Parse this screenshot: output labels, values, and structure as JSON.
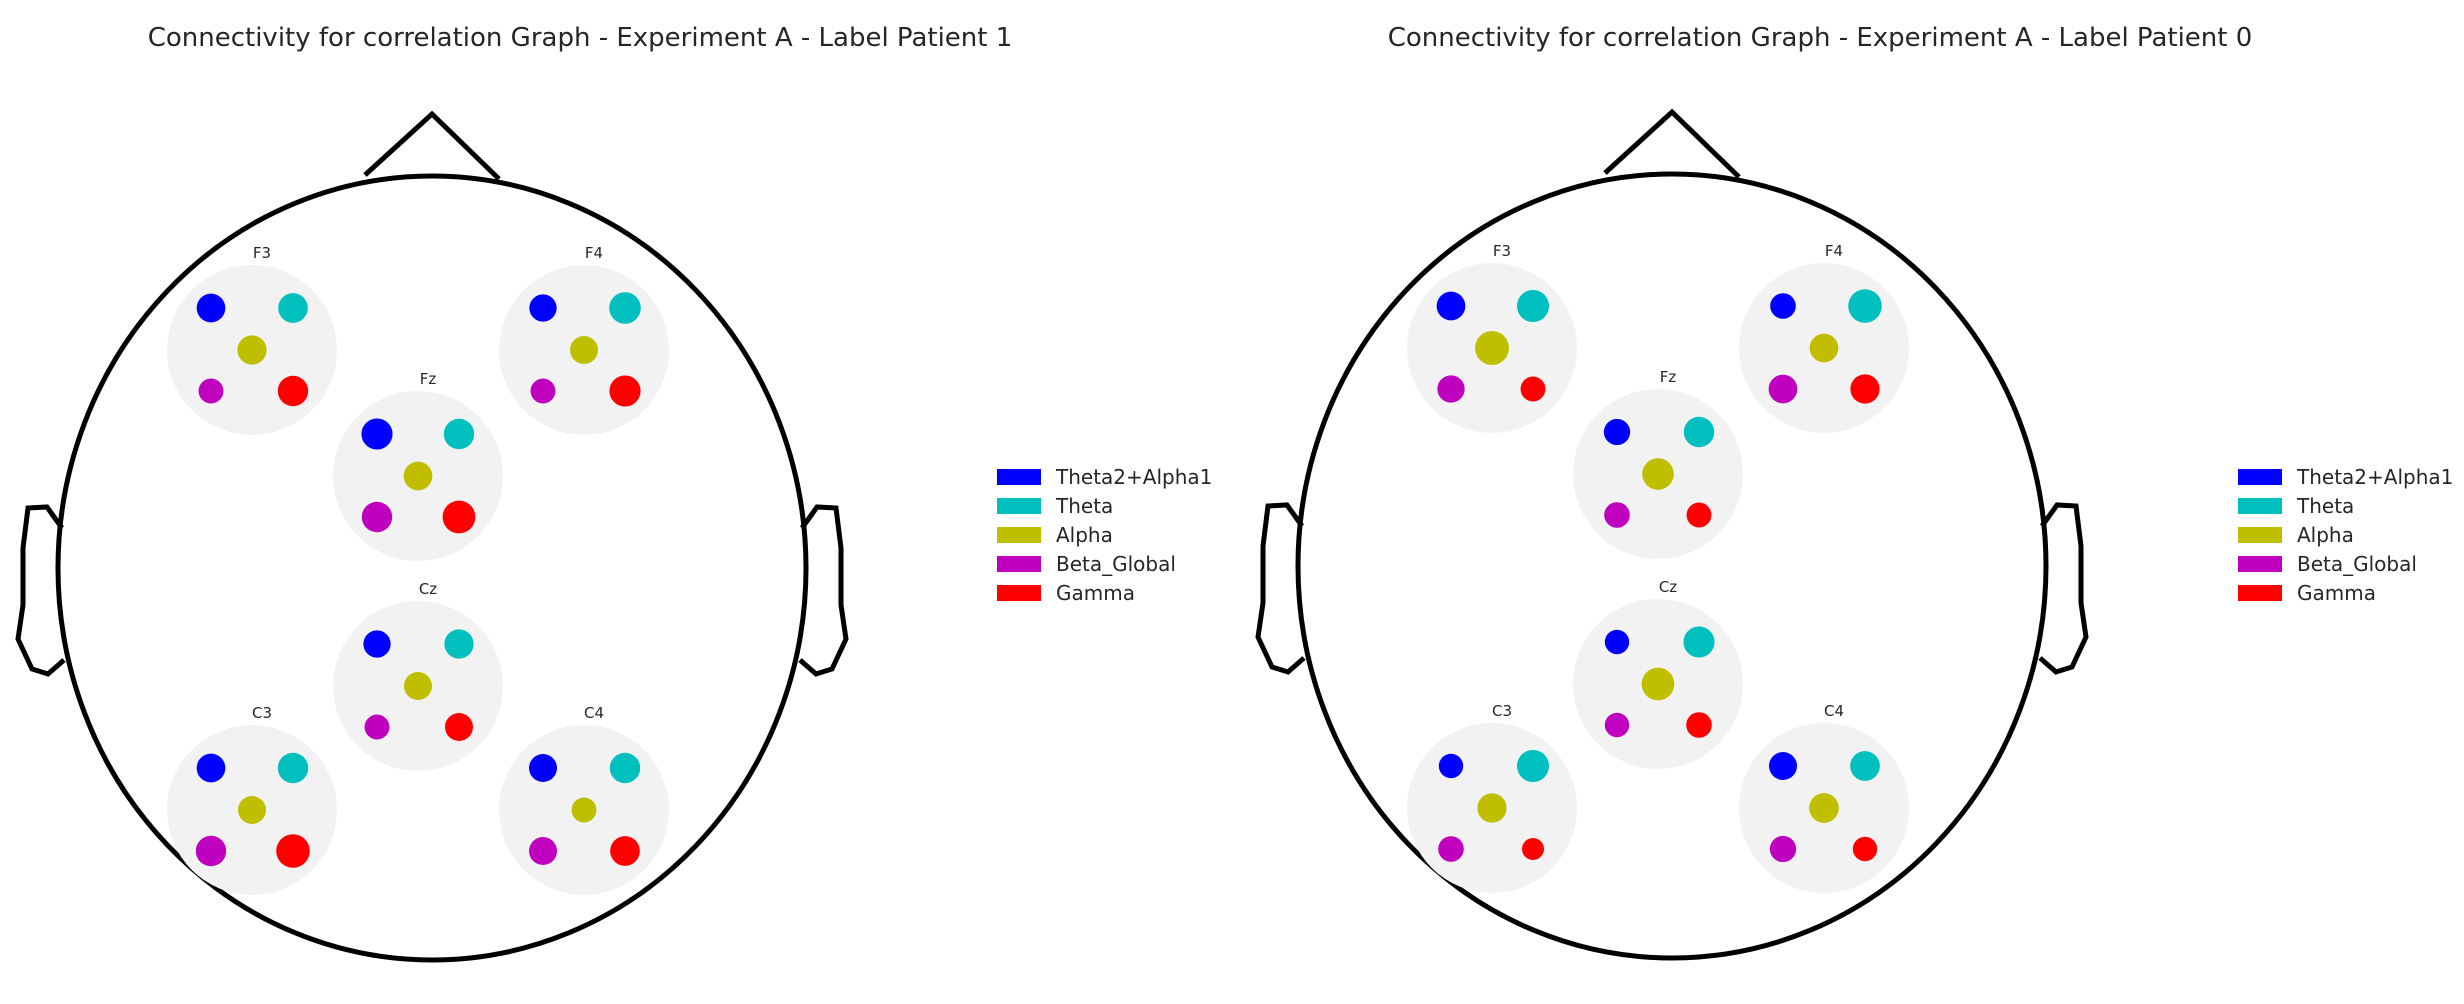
{
  "chart_data": [
    {
      "type": "scatter",
      "title": "Connectivity for correlation Graph - Experiment A - Label Patient 1",
      "series_order": [
        "Theta2+Alpha1",
        "Theta",
        "Alpha",
        "Beta_Global",
        "Gamma"
      ],
      "colors": {
        "Theta2+Alpha1": "#0000ff",
        "Theta": "#00bfbf",
        "Alpha": "#bfbf00",
        "Beta_Global": "#bf00bf",
        "Gamma": "#ff0000"
      },
      "legend": [
        "Theta2+Alpha1",
        "Theta",
        "Alpha",
        "Beta_Global",
        "Gamma"
      ],
      "legend_position": "right",
      "electrodes": [
        {
          "name": "F3",
          "values": {
            "Theta2+Alpha1": 0.78,
            "Theta": 0.82,
            "Alpha": 0.8,
            "Beta_Global": 0.62,
            "Gamma": 0.85
          }
        },
        {
          "name": "F4",
          "values": {
            "Theta2+Alpha1": 0.72,
            "Theta": 0.9,
            "Alpha": 0.75,
            "Beta_Global": 0.62,
            "Gamma": 0.88
          }
        },
        {
          "name": "Fz",
          "values": {
            "Theta2+Alpha1": 0.88,
            "Theta": 0.85,
            "Alpha": 0.78,
            "Beta_Global": 0.85,
            "Gamma": 0.95
          }
        },
        {
          "name": "Cz",
          "values": {
            "Theta2+Alpha1": 0.72,
            "Theta": 0.8,
            "Alpha": 0.75,
            "Beta_Global": 0.62,
            "Gamma": 0.75
          }
        },
        {
          "name": "C3",
          "values": {
            "Theta2+Alpha1": 0.78,
            "Theta": 0.85,
            "Alpha": 0.75,
            "Beta_Global": 0.85,
            "Gamma": 0.98
          }
        },
        {
          "name": "C4",
          "values": {
            "Theta2+Alpha1": 0.75,
            "Theta": 0.85,
            "Alpha": 0.62,
            "Beta_Global": 0.75,
            "Gamma": 0.82
          }
        }
      ]
    },
    {
      "type": "scatter",
      "title": "Connectivity for correlation Graph - Experiment A - Label Patient 0",
      "series_order": [
        "Theta2+Alpha1",
        "Theta",
        "Alpha",
        "Beta_Global",
        "Gamma"
      ],
      "colors": {
        "Theta2+Alpha1": "#0000ff",
        "Theta": "#00bfbf",
        "Alpha": "#bfbf00",
        "Beta_Global": "#bf00bf",
        "Gamma": "#ff0000"
      },
      "legend": [
        "Theta2+Alpha1",
        "Theta",
        "Alpha",
        "Beta_Global",
        "Gamma"
      ],
      "legend_position": "right",
      "electrodes": [
        {
          "name": "F3",
          "values": {
            "Theta2+Alpha1": 0.78,
            "Theta": 0.92,
            "Alpha": 1.0,
            "Beta_Global": 0.72,
            "Gamma": 0.62
          }
        },
        {
          "name": "F4",
          "values": {
            "Theta2+Alpha1": 0.65,
            "Theta": 0.98,
            "Alpha": 0.78,
            "Beta_Global": 0.78,
            "Gamma": 0.8
          }
        },
        {
          "name": "Fz",
          "values": {
            "Theta2+Alpha1": 0.68,
            "Theta": 0.85,
            "Alpha": 0.9,
            "Beta_Global": 0.65,
            "Gamma": 0.62
          }
        },
        {
          "name": "Cz",
          "values": {
            "Theta2+Alpha1": 0.6,
            "Theta": 0.88,
            "Alpha": 0.95,
            "Beta_Global": 0.6,
            "Gamma": 0.65
          }
        },
        {
          "name": "C3",
          "values": {
            "Theta2+Alpha1": 0.6,
            "Theta": 0.92,
            "Alpha": 0.8,
            "Beta_Global": 0.65,
            "Gamma": 0.5
          }
        },
        {
          "name": "C4",
          "values": {
            "Theta2+Alpha1": 0.75,
            "Theta": 0.82,
            "Alpha": 0.82,
            "Beta_Global": 0.68,
            "Gamma": 0.6
          }
        }
      ]
    }
  ]
}
